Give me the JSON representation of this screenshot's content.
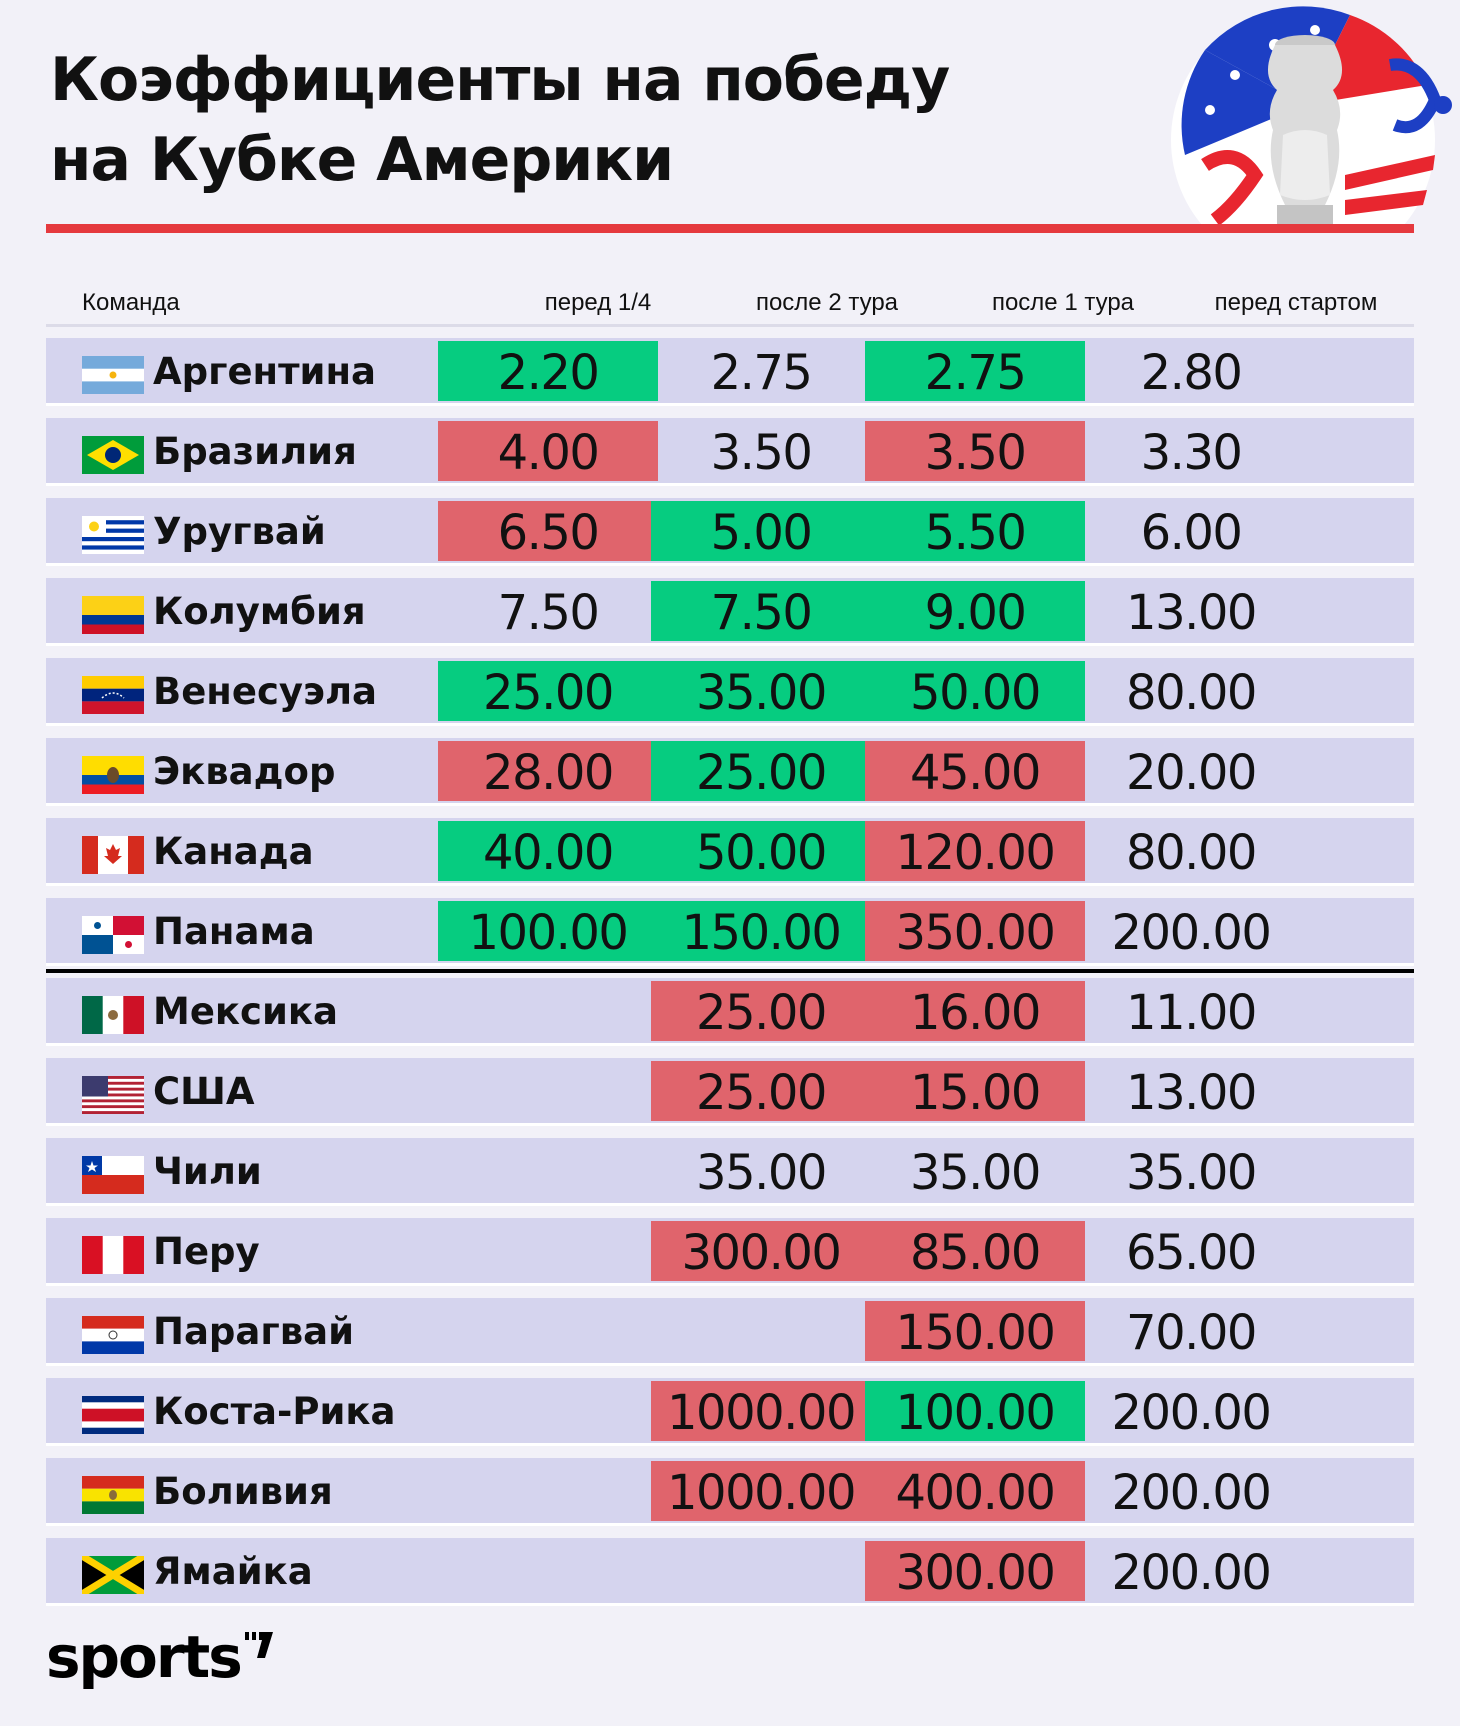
{
  "title": {
    "line1": "Коэффициенты на победу",
    "line2": "на Кубке Америки"
  },
  "logo_text": "sports",
  "colors": {
    "green": "#06cc80",
    "red": "#e0646c",
    "row_bg": "#d5d4ee",
    "accent_line": "#e5393e"
  },
  "chart_data": {
    "type": "table",
    "columns": [
      "Команда",
      "перед 1/4",
      "после 2 тура",
      "после 1 тура",
      "перед стартом"
    ],
    "rows": [
      {
        "team": "Аргентина",
        "flag": "argentina-flag",
        "values": [
          "2.20",
          "2.75",
          "2.75",
          "2.80"
        ],
        "colors": [
          "green",
          "",
          "green",
          ""
        ]
      },
      {
        "team": "Бразилия",
        "flag": "brazil-flag",
        "values": [
          "4.00",
          "3.50",
          "3.50",
          "3.30"
        ],
        "colors": [
          "red",
          "",
          "red",
          ""
        ]
      },
      {
        "team": "Уругвай",
        "flag": "uruguay-flag",
        "values": [
          "6.50",
          "5.00",
          "5.50",
          "6.00"
        ],
        "colors": [
          "red",
          "green",
          "green",
          ""
        ]
      },
      {
        "team": "Колумбия",
        "flag": "colombia-flag",
        "values": [
          "7.50",
          "7.50",
          "9.00",
          "13.00"
        ],
        "colors": [
          "",
          "green",
          "green",
          ""
        ]
      },
      {
        "team": "Венесуэла",
        "flag": "venezuela-flag",
        "values": [
          "25.00",
          "35.00",
          "50.00",
          "80.00"
        ],
        "colors": [
          "green",
          "green",
          "green",
          ""
        ]
      },
      {
        "team": "Эквадор",
        "flag": "ecuador-flag",
        "values": [
          "28.00",
          "25.00",
          "45.00",
          "20.00"
        ],
        "colors": [
          "red",
          "green",
          "red",
          ""
        ]
      },
      {
        "team": "Канада",
        "flag": "canada-flag",
        "values": [
          "40.00",
          "50.00",
          "120.00",
          "80.00"
        ],
        "colors": [
          "green",
          "green",
          "red",
          ""
        ]
      },
      {
        "team": "Панама",
        "flag": "panama-flag",
        "values": [
          "100.00",
          "150.00",
          "350.00",
          "200.00"
        ],
        "colors": [
          "green",
          "green",
          "red",
          ""
        ]
      },
      {
        "team": "Мексика",
        "flag": "mexico-flag",
        "values": [
          "",
          "25.00",
          "16.00",
          "11.00"
        ],
        "colors": [
          "",
          "red",
          "red",
          ""
        ]
      },
      {
        "team": "США",
        "flag": "usa-flag",
        "values": [
          "",
          "25.00",
          "15.00",
          "13.00"
        ],
        "colors": [
          "",
          "red",
          "red",
          ""
        ]
      },
      {
        "team": "Чили",
        "flag": "chile-flag",
        "values": [
          "",
          "35.00",
          "35.00",
          "35.00"
        ],
        "colors": [
          "",
          "",
          "",
          ""
        ]
      },
      {
        "team": "Перу",
        "flag": "peru-flag",
        "values": [
          "",
          "300.00",
          "85.00",
          "65.00"
        ],
        "colors": [
          "",
          "red",
          "red",
          ""
        ]
      },
      {
        "team": "Парагвай",
        "flag": "paraguay-flag",
        "values": [
          "",
          "",
          "150.00",
          "70.00"
        ],
        "colors": [
          "",
          "",
          "red",
          ""
        ]
      },
      {
        "team": "Коста-Рика",
        "flag": "costa-rica-flag",
        "values": [
          "",
          "1000.00",
          "100.00",
          "200.00"
        ],
        "colors": [
          "",
          "red",
          "green",
          ""
        ]
      },
      {
        "team": "Боливия",
        "flag": "bolivia-flag",
        "values": [
          "",
          "1000.00",
          "400.00",
          "200.00"
        ],
        "colors": [
          "",
          "red",
          "red",
          ""
        ]
      },
      {
        "team": "Ямайка",
        "flag": "jamaica-flag",
        "values": [
          "",
          "",
          "300.00",
          "200.00"
        ],
        "colors": [
          "",
          "",
          "red",
          ""
        ]
      }
    ]
  }
}
